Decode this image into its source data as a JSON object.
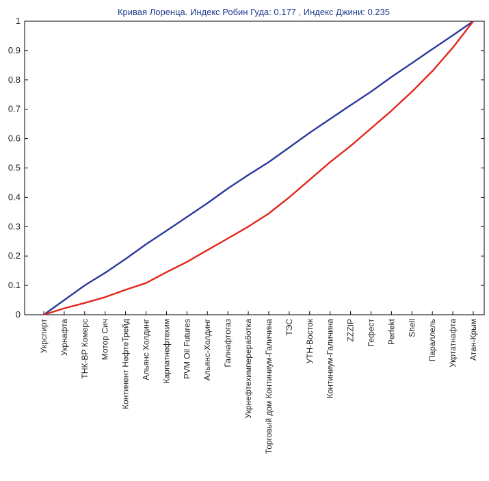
{
  "chart_data": {
    "type": "line",
    "title": "Кривая Лоренца. Индекс Робин Гуда: 0.177 , Индекс Джини: 0.235",
    "xlabel": "",
    "ylabel": "",
    "ylim": [
      0,
      1
    ],
    "yticks": [
      "0",
      "0.1",
      "0.2",
      "0.3",
      "0.4",
      "0.5",
      "0.6",
      "0.7",
      "0.8",
      "0.9",
      "1"
    ],
    "grid": false,
    "legend": "none",
    "categories": [
      "Укрспирт",
      "Укрнафта",
      "ТНК-ВР Комерс",
      "Мотор Сич",
      "Континент НефтеТрейд",
      "Альянс Холдинг",
      "Карпатнефтехим",
      "PVM Oil Futures",
      "Альянс-Холдинг",
      "Галнафтогаз",
      "Укрнефтехимпереработка",
      "Торговый дом Континиум-Галичина",
      "ТЭС",
      "УТН-Восток",
      "Континиум-Галичина",
      "ZZZIP",
      "Гефест",
      "Perfekt",
      "Shell",
      "Параллель",
      "Укртатнафта",
      "Атан-Крым"
    ],
    "series": [
      {
        "color": "#2b3a9a",
        "values": [
          0,
          0.05,
          0.1,
          0.143,
          0.19,
          0.24,
          0.286,
          0.333,
          0.38,
          0.43,
          0.476,
          0.52,
          0.57,
          0.62,
          0.667,
          0.714,
          0.76,
          0.81,
          0.857,
          0.905,
          0.952,
          1.0
        ]
      },
      {
        "color": "#e3261b",
        "values": [
          0,
          0.022,
          0.04,
          0.06,
          0.085,
          0.108,
          0.145,
          0.18,
          0.22,
          0.26,
          0.3,
          0.345,
          0.4,
          0.46,
          0.52,
          0.575,
          0.635,
          0.695,
          0.76,
          0.83,
          0.91,
          1.0
        ]
      }
    ]
  }
}
